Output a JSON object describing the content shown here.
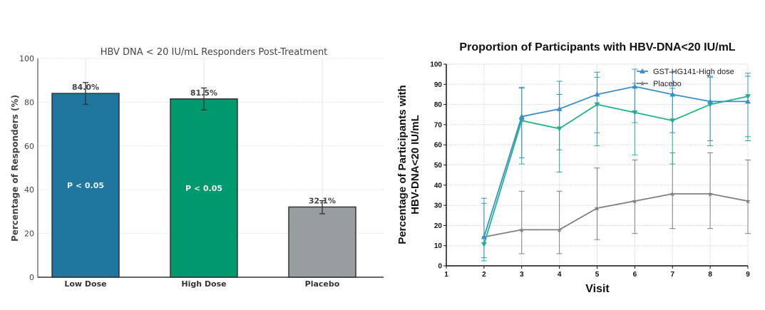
{
  "chart_data": [
    {
      "type": "bar",
      "title": "HBV DNA < 20 IU/mL Responders Post-Treatment",
      "xlabel": "",
      "ylabel": "Percentage of Responders (%)",
      "ylim": [
        0,
        100
      ],
      "yticks": [
        0,
        20,
        40,
        60,
        80,
        100
      ],
      "grid": true,
      "categories": [
        "Low Dose",
        "High Dose",
        "Placebo"
      ],
      "values": [
        84.0,
        81.5,
        32.1
      ],
      "error_low": [
        79,
        76.5,
        29
      ],
      "error_high": [
        89,
        86.5,
        35
      ],
      "data_labels": [
        "84.0%",
        "81.5%",
        "32.1%"
      ],
      "annotations": [
        "P < 0.05",
        "P < 0.05",
        ""
      ],
      "colors": [
        "#1f77a0",
        "#00996e",
        "#9a9d9f"
      ]
    },
    {
      "type": "line",
      "title": "Proportion of Participants with HBV-DNA<20 IU/mL",
      "xlabel": "Visit",
      "ylabel": [
        "Percentage of Participants with",
        "HBV-DNA<20 IU/mL"
      ],
      "xlim": [
        1,
        9
      ],
      "ylim": [
        0,
        100
      ],
      "xticks": [
        1,
        2,
        3,
        4,
        5,
        6,
        7,
        8,
        9
      ],
      "yticks": [
        0,
        10,
        20,
        30,
        40,
        50,
        60,
        70,
        80,
        90,
        100
      ],
      "grid": true,
      "legend_placement": "top-right",
      "x": [
        2,
        3,
        4,
        5,
        6,
        7,
        8,
        9
      ],
      "series": [
        {
          "name": "GST-HG141-High dose",
          "color": "#3a8fc7",
          "marker": "triangle-up",
          "values": [
            14.3,
            74.0,
            77.8,
            85.0,
            88.9,
            85.0,
            81.5,
            81.5
          ],
          "error_low": [
            4,
            53.5,
            57.5,
            66,
            71,
            66,
            62,
            62
          ],
          "error_high": [
            33.5,
            88.5,
            91.5,
            96,
            97.5,
            96,
            94,
            94
          ]
        },
        {
          "color": "#1fb58a",
          "marker": "triangle-down",
          "values": [
            10.7,
            72.0,
            68.0,
            80.0,
            76.0,
            72.0,
            80.0,
            84.0
          ],
          "error_low": [
            2.5,
            50.5,
            46.5,
            59.5,
            55,
            50.5,
            59.5,
            64
          ],
          "error_high": [
            31,
            88,
            85,
            93.5,
            90.5,
            88,
            93.5,
            95.5
          ]
        },
        {
          "name": "Placebo",
          "color": "#808080",
          "marker": "star",
          "values": [
            14.3,
            17.9,
            17.9,
            28.6,
            32.1,
            35.7,
            35.7,
            32.1
          ],
          "error_low": [
            null,
            6,
            6,
            13,
            16,
            18.5,
            18.5,
            16
          ],
          "error_high": [
            null,
            37,
            37,
            48.5,
            52.5,
            56,
            56,
            52.5
          ]
        }
      ]
    }
  ]
}
